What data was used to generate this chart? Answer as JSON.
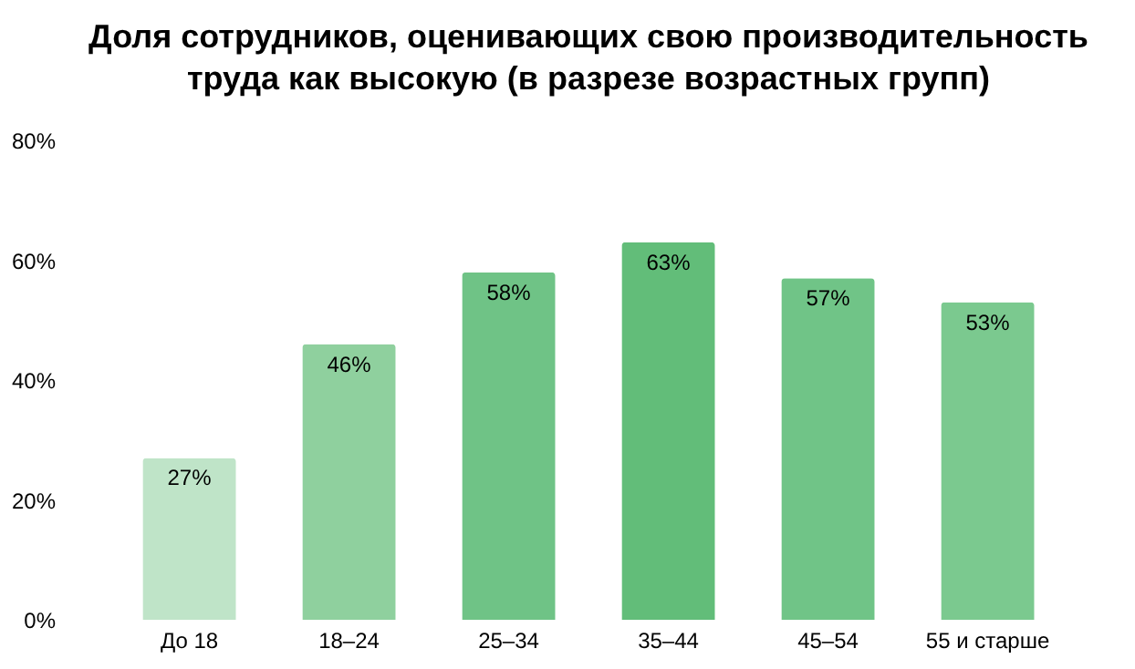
{
  "chart_data": {
    "type": "bar",
    "title": "Доля сотрудников, оценивающих свою производительность\nтруда как высокую (в разрезе возрастных групп)",
    "categories": [
      "До 18",
      "18–24",
      "25–34",
      "35–44",
      "45–54",
      "55 и старше"
    ],
    "values": [
      27,
      46,
      58,
      63,
      57,
      53
    ],
    "value_labels": [
      "27%",
      "46%",
      "58%",
      "63%",
      "57%",
      "53%"
    ],
    "colors": [
      "#bfe4c8",
      "#8fd09e",
      "#6fc386",
      "#62bd79",
      "#70c487",
      "#7bc98f"
    ],
    "ylim": [
      0,
      80
    ],
    "yticks": [
      {
        "value": 0,
        "label": "0%"
      },
      {
        "value": 20,
        "label": "20%"
      },
      {
        "value": 40,
        "label": "40%"
      },
      {
        "value": 60,
        "label": "60%"
      },
      {
        "value": 80,
        "label": "80%"
      }
    ],
    "grid": false
  }
}
